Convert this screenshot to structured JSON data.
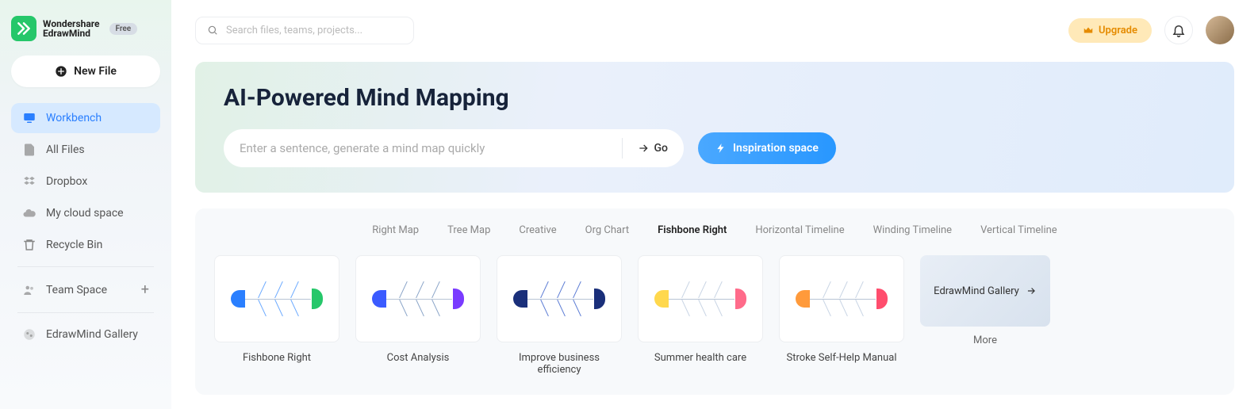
{
  "brand": {
    "line1": "Wondershare",
    "line2": "EdrawMind",
    "badge": "Free"
  },
  "sidebar": {
    "new_file": "New File",
    "items": [
      {
        "label": "Workbench",
        "icon": "workbench"
      },
      {
        "label": "All Files",
        "icon": "files"
      },
      {
        "label": "Dropbox",
        "icon": "dropbox"
      },
      {
        "label": "My cloud space",
        "icon": "cloud"
      },
      {
        "label": "Recycle Bin",
        "icon": "trash"
      },
      {
        "label": "Team Space",
        "icon": "team"
      },
      {
        "label": "EdrawMind Gallery",
        "icon": "gallery"
      }
    ]
  },
  "search": {
    "placeholder": "Search files, teams, projects..."
  },
  "topbar": {
    "upgrade": "Upgrade"
  },
  "hero": {
    "title": "AI-Powered Mind Mapping",
    "placeholder": "Enter a sentence, generate a mind map quickly",
    "go": "Go",
    "inspiration": "Inspiration space"
  },
  "tabs": [
    "Right Map",
    "Tree Map",
    "Creative",
    "Org Chart",
    "Fishbone Right",
    "Horizontal Timeline",
    "Winding Timeline",
    "Vertical Timeline"
  ],
  "active_tab_index": 4,
  "templates": [
    {
      "label": "Fishbone Right",
      "colors": {
        "tail": "#2a7fff",
        "head": "#26c76a",
        "bones": "#6aa9ff"
      }
    },
    {
      "label": "Cost Analysis",
      "colors": {
        "tail": "#3b5bff",
        "head": "#7a3bff",
        "bones": "#8aa4c8"
      }
    },
    {
      "label": "Improve business efficiency",
      "colors": {
        "tail": "#1a2f7a",
        "head": "#1a2f7a",
        "bones": "#5a7bd4"
      }
    },
    {
      "label": "Summer health care",
      "colors": {
        "tail": "#ffd84d",
        "head": "#ff6b8a",
        "bones": "#c8d4e4"
      }
    },
    {
      "label": "Stroke Self-Help Manual",
      "colors": {
        "tail": "#ff9a3b",
        "head": "#ff4d6d",
        "bones": "#c8d4e4"
      }
    }
  ],
  "gallery": {
    "cta": "EdrawMind Gallery",
    "more": "More"
  },
  "colors": {
    "accent": "#2a7fff",
    "hero_title": "#17233a",
    "upgrade_bg": "#ffe9b8",
    "upgrade_text": "#e58b00"
  }
}
